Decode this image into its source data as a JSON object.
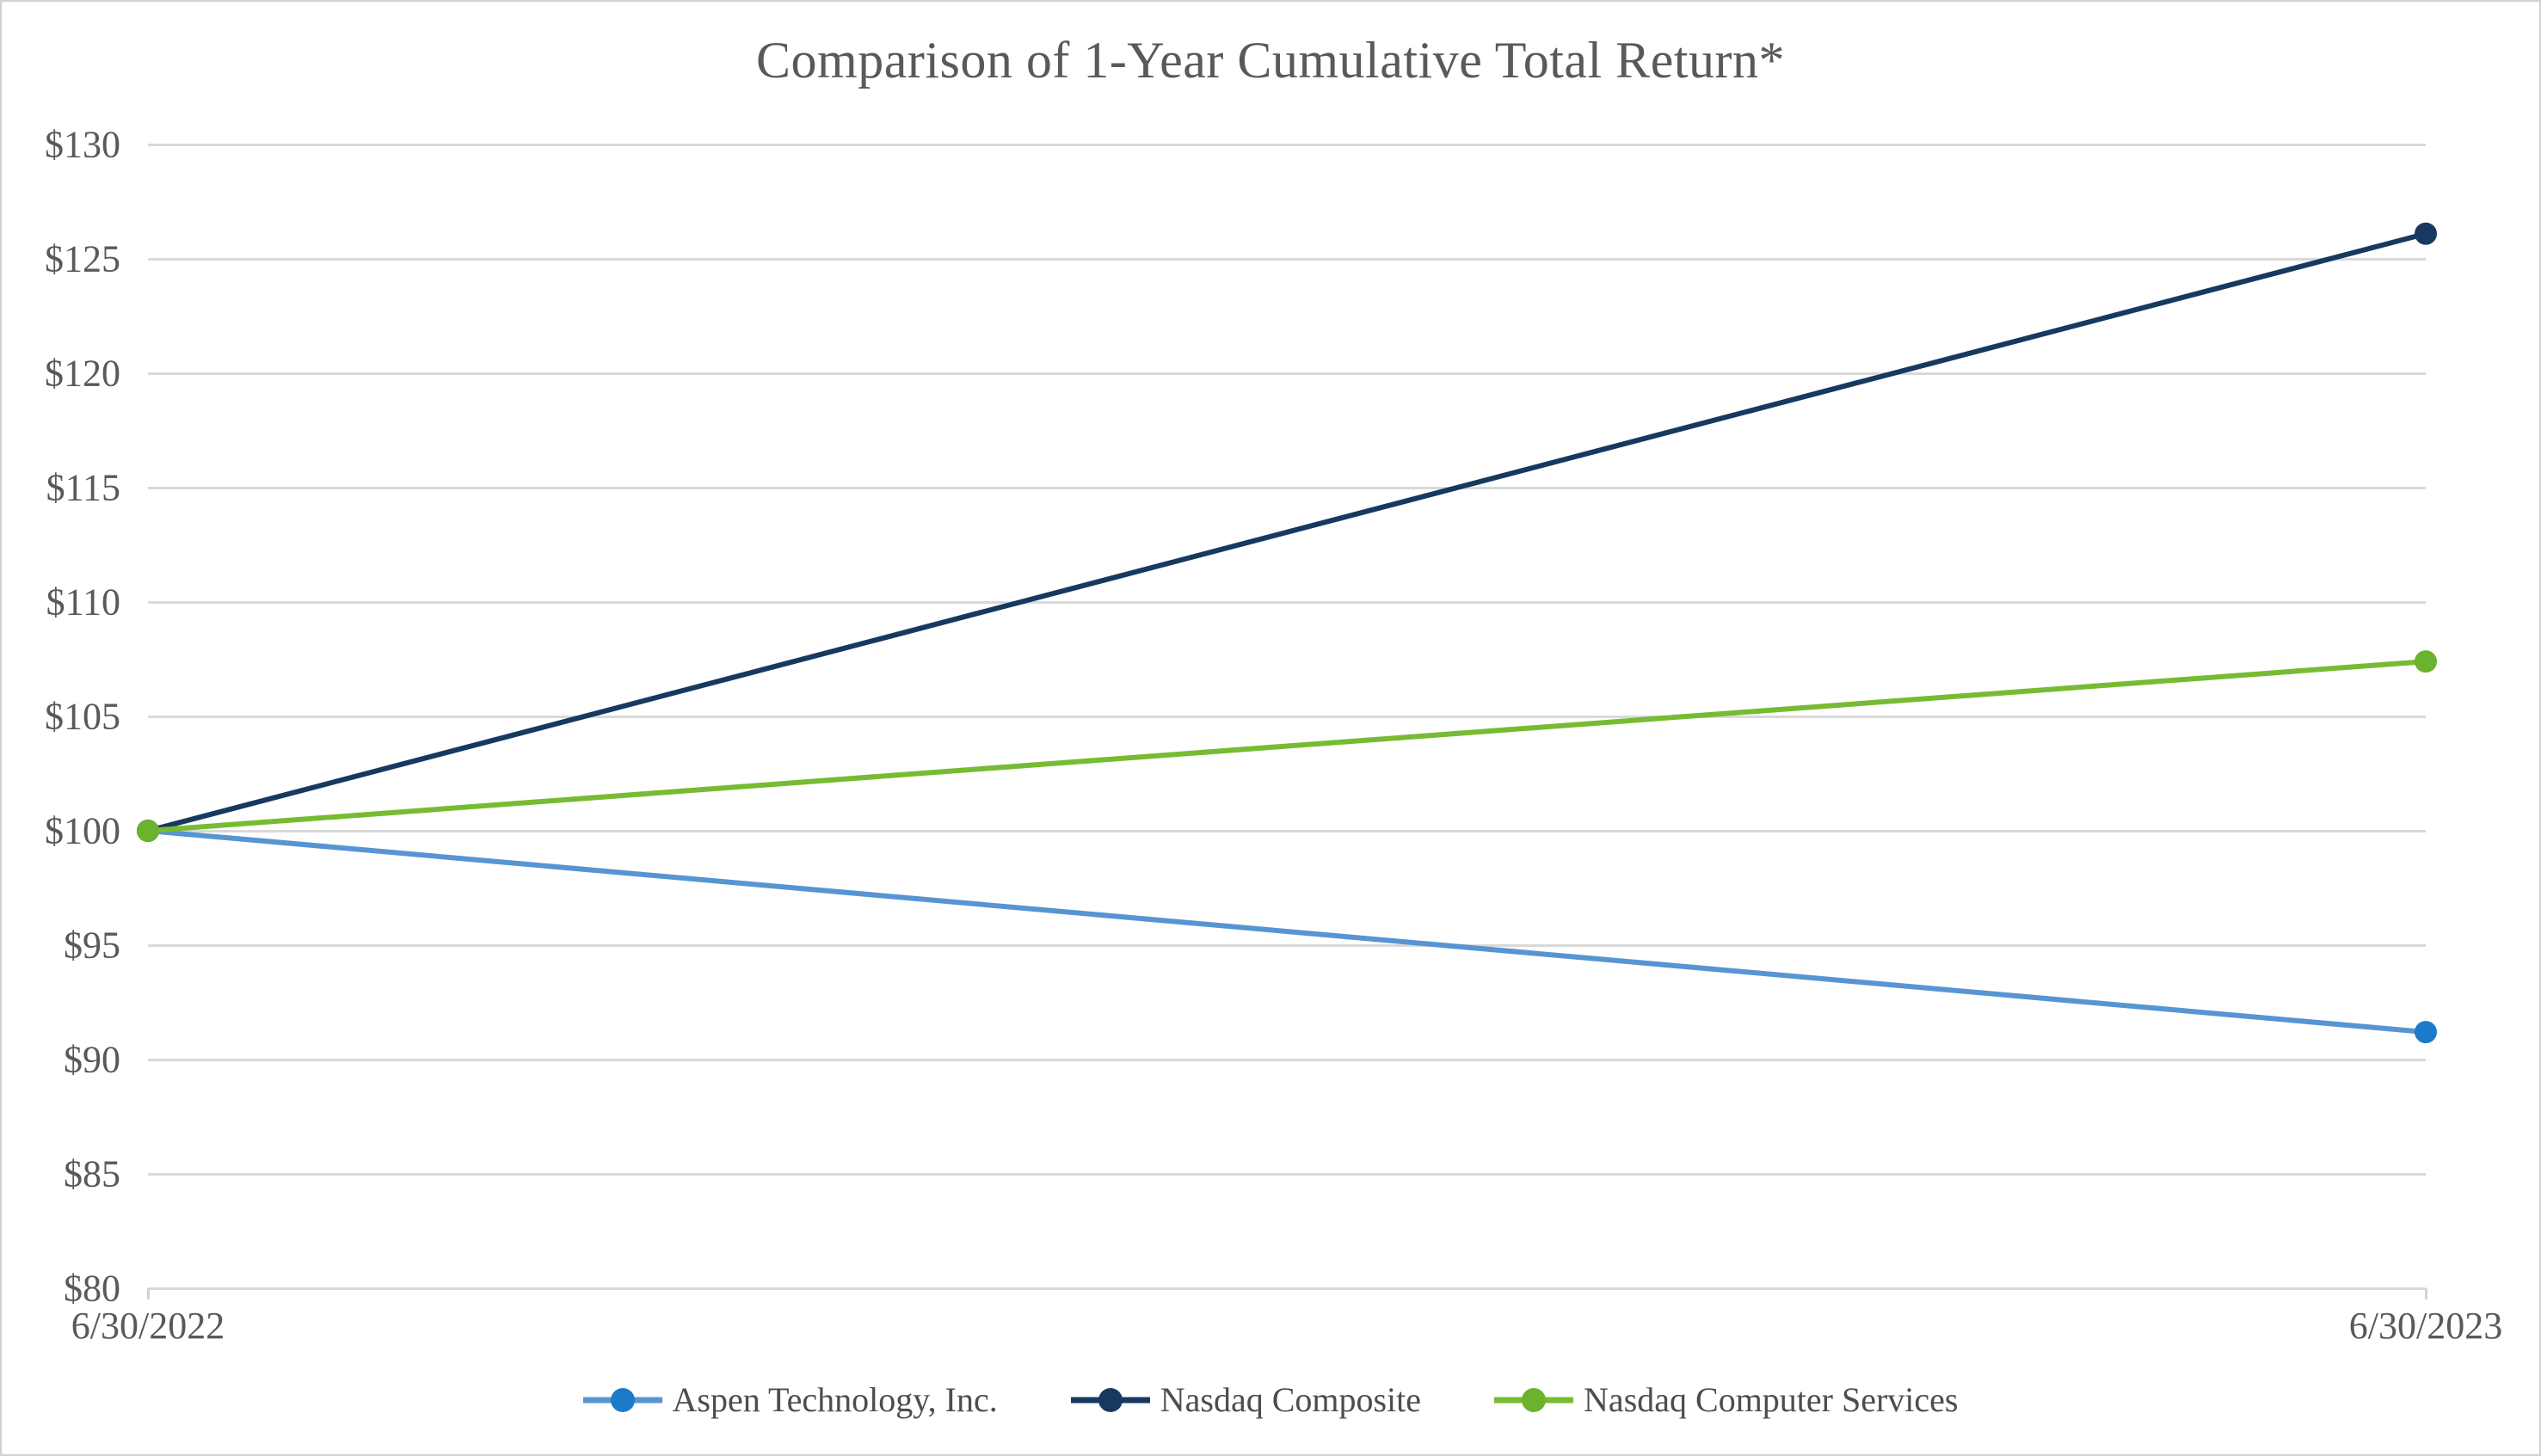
{
  "chart_data": {
    "type": "line",
    "title": "Comparison of 1-Year Cumulative Total Return*",
    "x_categories": [
      "6/30/2022",
      "6/30/2023"
    ],
    "series": [
      {
        "name": "Aspen Technology, Inc.",
        "values": [
          100,
          91.2
        ],
        "line_color": "#5795d2",
        "marker_color": "#1c7bc9"
      },
      {
        "name": "Nasdaq Composite",
        "values": [
          100,
          126.1
        ],
        "line_color": "#17395f",
        "marker_color": "#17395f"
      },
      {
        "name": "Nasdaq Computer Services",
        "values": [
          100,
          107.4
        ],
        "line_color": "#77bb33",
        "marker_color": "#6bb32e"
      }
    ],
    "y_axis": {
      "min": 80,
      "max": 130,
      "step": 5,
      "tick_labels": [
        "$80",
        "$85",
        "$90",
        "$95",
        "$100",
        "$105",
        "$110",
        "$115",
        "$120",
        "$125",
        "$130"
      ]
    },
    "xlabel": "",
    "ylabel": "",
    "grid": "horizontal",
    "legend_position": "bottom"
  },
  "colors": {
    "grid": "#d9d9d9",
    "axis_tick": "#d2d2d2",
    "title_text": "#595959",
    "axis_text": "#595959",
    "legend_text": "#4d4d4d",
    "border": "#d0d0d0",
    "background": "#ffffff"
  }
}
